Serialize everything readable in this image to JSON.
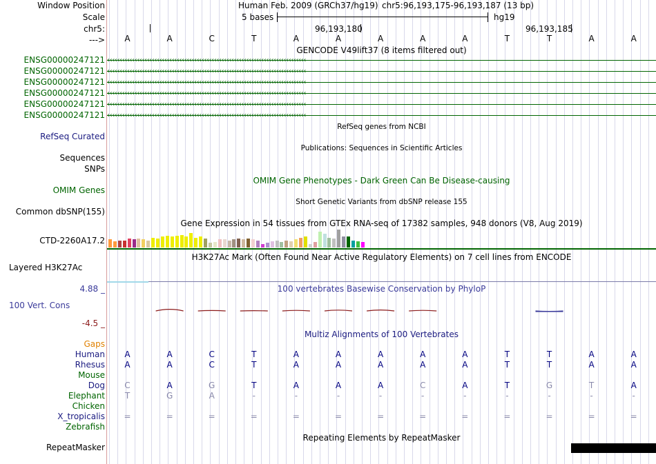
{
  "header": {
    "window_position_label": "Window Position",
    "assembly": "Human Feb. 2009 (GRCh37/hg19)",
    "range": "chr5:96,193,175-96,193,187 (13 bp)",
    "scale_label": "Scale",
    "scale_text": "5 bases",
    "scale_db": "hg19",
    "chrom_label": "chr5:",
    "coord_1": "96,193,180",
    "coord_2": "96,193,185",
    "strand_label": "--->"
  },
  "sequence": [
    "A",
    "A",
    "C",
    "T",
    "A",
    "A",
    "A",
    "A",
    "A",
    "T",
    "T",
    "A",
    "A"
  ],
  "gencode": {
    "title": "GENCODE V49lift37 (8 items filtered out)",
    "color": "#006400",
    "items": [
      "ENSG00000247121",
      "ENSG00000247121",
      "ENSG00000247121",
      "ENSG00000247121",
      "ENSG00000247121",
      "ENSG00000247121"
    ]
  },
  "refseq": {
    "title": "RefSeq genes from NCBI",
    "label": "RefSeq Curated",
    "color": "#1a1a80"
  },
  "publications": {
    "title": "Publications: Sequences in Scientific Articles",
    "label": "Sequences"
  },
  "snps": {
    "label": "SNPs"
  },
  "omim": {
    "title": "OMIM Gene Phenotypes - Dark Green Can Be Disease-causing",
    "label": "OMIM Genes",
    "color": "#006400"
  },
  "dbsnp": {
    "title": "Short Genetic Variants from dbSNP release 155",
    "label": "Common dbSNP(155)"
  },
  "gtex": {
    "title": "Gene Expression in 54 tissues from GTEx RNA-seq of 17382 samples, 948 donors (V8, Aug 2019)",
    "label": "CTD-2260A17.2",
    "bars": [
      {
        "value": 0.45,
        "color": "#ff9a3c"
      },
      {
        "value": 0.35,
        "color": "#ff9a3c"
      },
      {
        "value": 0.4,
        "color": "#b04040"
      },
      {
        "value": 0.4,
        "color": "#c83030"
      },
      {
        "value": 0.5,
        "color": "#e04060"
      },
      {
        "value": 0.45,
        "color": "#9a2a8a"
      },
      {
        "value": 0.5,
        "color": "#e0c0a0"
      },
      {
        "value": 0.45,
        "color": "#f0d060"
      },
      {
        "value": 0.4,
        "color": "#d8c8a0"
      },
      {
        "value": 0.55,
        "color": "#eeee00"
      },
      {
        "value": 0.5,
        "color": "#eeee00"
      },
      {
        "value": 0.6,
        "color": "#eeee00"
      },
      {
        "value": 0.65,
        "color": "#eeee00"
      },
      {
        "value": 0.6,
        "color": "#eeee00"
      },
      {
        "value": 0.65,
        "color": "#eeee00"
      },
      {
        "value": 0.7,
        "color": "#eeee00"
      },
      {
        "value": 0.6,
        "color": "#eeee00"
      },
      {
        "value": 0.8,
        "color": "#eeee00"
      },
      {
        "value": 0.55,
        "color": "#eeee00"
      },
      {
        "value": 0.6,
        "color": "#eeee00"
      },
      {
        "value": 0.5,
        "color": "#a0a060"
      },
      {
        "value": 0.25,
        "color": "#c8c8a0"
      },
      {
        "value": 0.3,
        "color": "#e8e8c8"
      },
      {
        "value": 0.45,
        "color": "#f0c0c0"
      },
      {
        "value": 0.45,
        "color": "#e8d8d0"
      },
      {
        "value": 0.4,
        "color": "#c8b8a8"
      },
      {
        "value": 0.45,
        "color": "#a09080"
      },
      {
        "value": 0.5,
        "color": "#806050"
      },
      {
        "value": 0.45,
        "color": "#d0b8a0"
      },
      {
        "value": 0.5,
        "color": "#806030"
      },
      {
        "value": 0.45,
        "color": "#f0d0d0"
      },
      {
        "value": 0.4,
        "color": "#b080c0"
      },
      {
        "value": 0.2,
        "color": "#d040d0"
      },
      {
        "value": 0.25,
        "color": "#b090d0"
      },
      {
        "value": 0.35,
        "color": "#e0c0e0"
      },
      {
        "value": 0.4,
        "color": "#c0c0c0"
      },
      {
        "value": 0.3,
        "color": "#a0c0a0"
      },
      {
        "value": 0.4,
        "color": "#c0a080"
      },
      {
        "value": 0.35,
        "color": "#e0d0b0"
      },
      {
        "value": 0.45,
        "color": "#f0e070"
      },
      {
        "value": 0.55,
        "color": "#f0a060"
      },
      {
        "value": 0.6,
        "color": "#e0e000"
      },
      {
        "value": 0.2,
        "color": "#d0d0d0"
      },
      {
        "value": 0.3,
        "color": "#e0a0a0"
      },
      {
        "value": 0.9,
        "color": "#c0f0b0"
      },
      {
        "value": 0.75,
        "color": "#c0e0e0"
      },
      {
        "value": 0.55,
        "color": "#a0c0a0"
      },
      {
        "value": 0.5,
        "color": "#c0c0c0"
      },
      {
        "value": 1.0,
        "color": "#a0a0a0"
      },
      {
        "value": 0.6,
        "color": "#9090a0"
      },
      {
        "value": 0.6,
        "color": "#006400"
      },
      {
        "value": 0.4,
        "color": "#00a0a0"
      },
      {
        "value": 0.35,
        "color": "#40c040"
      },
      {
        "value": 0.3,
        "color": "#ff00ff"
      }
    ]
  },
  "h3k27ac": {
    "title": "H3K27Ac Mark (Often Found Near Active Regulatory Elements) on 7 cell lines from ENCODE",
    "label": "Layered H3K27Ac"
  },
  "phylop": {
    "title": "100 vertebrates Basewise Conservation by PhyloP",
    "label": "100 Vert. Cons",
    "max_label": "4.88 _",
    "min_label": "-4.5 _",
    "title_color": "#3a3a9a",
    "max_color": "#3a3a9a",
    "min_color": "#8b1a1a",
    "values": [
      0.0,
      0.6,
      0.15,
      0.1,
      0.2,
      0.3,
      0.35,
      0.2,
      0.0,
      0.0,
      -0.15,
      0.0,
      0.0
    ]
  },
  "multiz": {
    "title": "Multiz Alignments of 100 Vertebrates",
    "title_color": "#1a1a80",
    "gaps_label": "Gaps",
    "gaps_color": "#e08000",
    "species": [
      {
        "name": "Human",
        "color": "#1a1a80",
        "bases": [
          "A",
          "A",
          "C",
          "T",
          "A",
          "A",
          "A",
          "A",
          "A",
          "T",
          "T",
          "A",
          "A"
        ],
        "base_color": "#000080"
      },
      {
        "name": "Rhesus",
        "color": "#1a1a80",
        "bases": [
          "A",
          "A",
          "C",
          "T",
          "A",
          "A",
          "A",
          "A",
          "A",
          "T",
          "T",
          "A",
          "A"
        ],
        "base_color": "#000080"
      },
      {
        "name": "Mouse",
        "color": "#006400",
        "bases": [
          "",
          "",
          "",
          "",
          "",
          "",
          "",
          "",
          "",
          "",
          "",
          "",
          ""
        ],
        "base_color": "#000080"
      },
      {
        "name": "Dog",
        "color": "#1a1a80",
        "bases": [
          "C",
          "A",
          "G",
          "T",
          "A",
          "A",
          "A",
          "C",
          "A",
          "T",
          "G",
          "T",
          "A"
        ],
        "base_color": "#000080"
      },
      {
        "name": "Elephant",
        "color": "#006400",
        "bases": [
          "T",
          "G",
          "A",
          "-",
          "-",
          "-",
          "-",
          "-",
          "-",
          "-",
          "-",
          "-",
          "-"
        ],
        "base_color": "#8888aa"
      },
      {
        "name": "Chicken",
        "color": "#006400",
        "bases": [
          "",
          "",
          "",
          "",
          "",
          "",
          "",
          "",
          "",
          "",
          "",
          "",
          ""
        ],
        "base_color": "#000080"
      },
      {
        "name": "X_tropicalis",
        "color": "#1a1a80",
        "bases": [
          "=",
          "=",
          "=",
          "=",
          "=",
          "=",
          "=",
          "=",
          "=",
          "=",
          "=",
          "=",
          "="
        ],
        "base_color": "#8888aa"
      },
      {
        "name": "Zebrafish",
        "color": "#006400",
        "bases": [
          "",
          "",
          "",
          "",
          "",
          "",
          "",
          "",
          "",
          "",
          "",
          "",
          ""
        ],
        "base_color": "#000080"
      }
    ]
  },
  "repeatmasker": {
    "title": "Repeating Elements by RepeatMasker",
    "label": "RepeatMasker"
  }
}
